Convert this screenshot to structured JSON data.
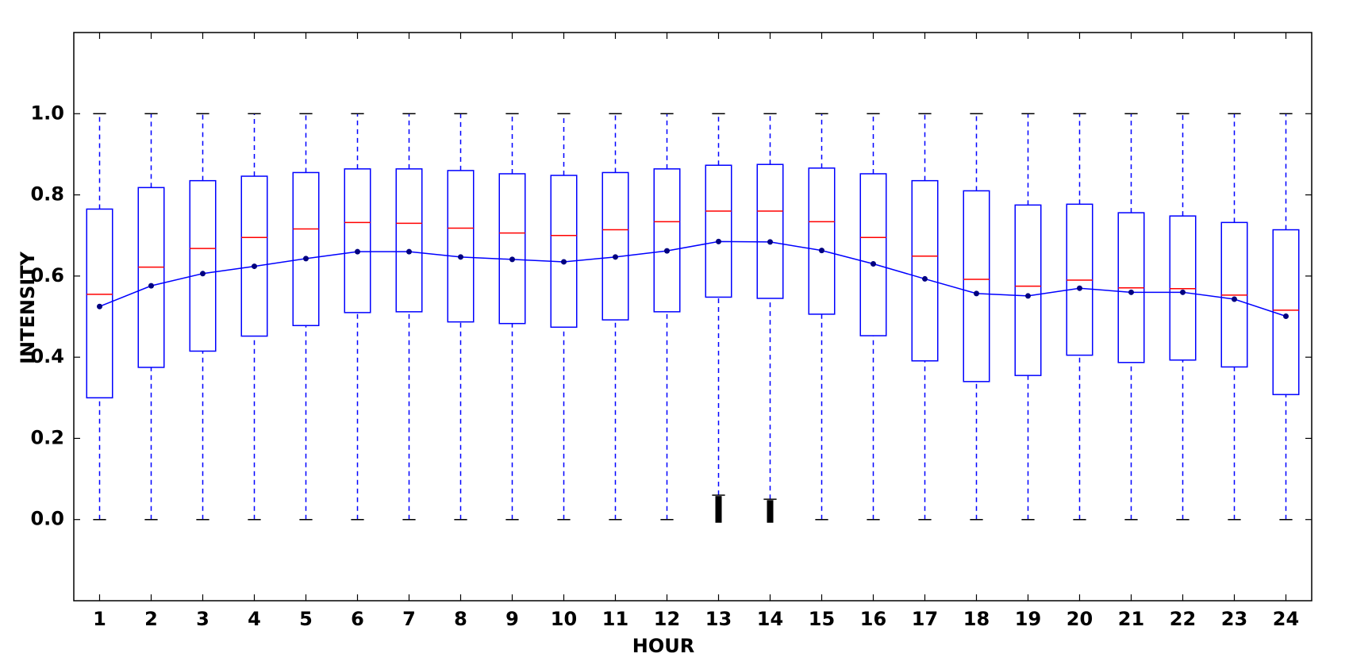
{
  "chart_data": {
    "type": "box",
    "x_label": "HOUR",
    "y_label": "INTENSITY",
    "categories": [
      "1",
      "2",
      "3",
      "4",
      "5",
      "6",
      "7",
      "8",
      "9",
      "10",
      "11",
      "12",
      "13",
      "14",
      "15",
      "16",
      "17",
      "18",
      "19",
      "20",
      "21",
      "22",
      "23",
      "24"
    ],
    "q1": [
      0.3,
      0.375,
      0.415,
      0.452,
      0.478,
      0.51,
      0.512,
      0.487,
      0.483,
      0.474,
      0.492,
      0.512,
      0.548,
      0.545,
      0.506,
      0.453,
      0.391,
      0.34,
      0.355,
      0.405,
      0.387,
      0.393,
      0.376,
      0.308
    ],
    "median": [
      0.555,
      0.622,
      0.668,
      0.695,
      0.716,
      0.732,
      0.73,
      0.718,
      0.706,
      0.7,
      0.714,
      0.734,
      0.76,
      0.76,
      0.734,
      0.695,
      0.649,
      0.592,
      0.575,
      0.59,
      0.571,
      0.569,
      0.553,
      0.516
    ],
    "q3": [
      0.765,
      0.818,
      0.835,
      0.846,
      0.855,
      0.864,
      0.864,
      0.86,
      0.852,
      0.848,
      0.855,
      0.864,
      0.873,
      0.875,
      0.866,
      0.852,
      0.835,
      0.81,
      0.775,
      0.777,
      0.756,
      0.748,
      0.732,
      0.714
    ],
    "whisker_low": [
      0,
      0,
      0,
      0,
      0,
      0,
      0,
      0,
      0,
      0,
      0,
      0,
      0.06,
      0.05,
      0,
      0,
      0,
      0,
      0,
      0,
      0,
      0,
      0,
      0
    ],
    "whisker_high": [
      1,
      1,
      1,
      1,
      1,
      1,
      1,
      1,
      1,
      1,
      1,
      1,
      1,
      1,
      1,
      1,
      1,
      1,
      1,
      1,
      1,
      1,
      1,
      1
    ],
    "mean": [
      0.525,
      0.576,
      0.606,
      0.624,
      0.643,
      0.66,
      0.66,
      0.647,
      0.641,
      0.635,
      0.647,
      0.662,
      0.685,
      0.684,
      0.663,
      0.63,
      0.593,
      0.557,
      0.551,
      0.57,
      0.56,
      0.56,
      0.543,
      0.501
    ],
    "outliers": [
      [],
      [],
      [],
      [],
      [],
      [],
      [],
      [],
      [],
      [],
      [],
      [],
      [
        0,
        0.01,
        0.02,
        0.03,
        0.04,
        0.05
      ],
      [
        0,
        0.01,
        0.02,
        0.03,
        0.04
      ],
      [],
      [],
      [],
      [],
      [],
      [],
      [],
      [],
      [],
      []
    ],
    "box_color": "#0000ff",
    "median_color": "#ff0000",
    "mean_color": "#0000ff",
    "mean_marker_color": "#000080",
    "outlier_color": "#000000",
    "ylim": [
      -0.2,
      1.2
    ],
    "yticks": [
      {
        "value": 0,
        "label": "0.0"
      },
      0.2,
      0.4,
      0.6,
      0.8,
      {
        "value": 1,
        "label": "1.0"
      }
    ]
  }
}
